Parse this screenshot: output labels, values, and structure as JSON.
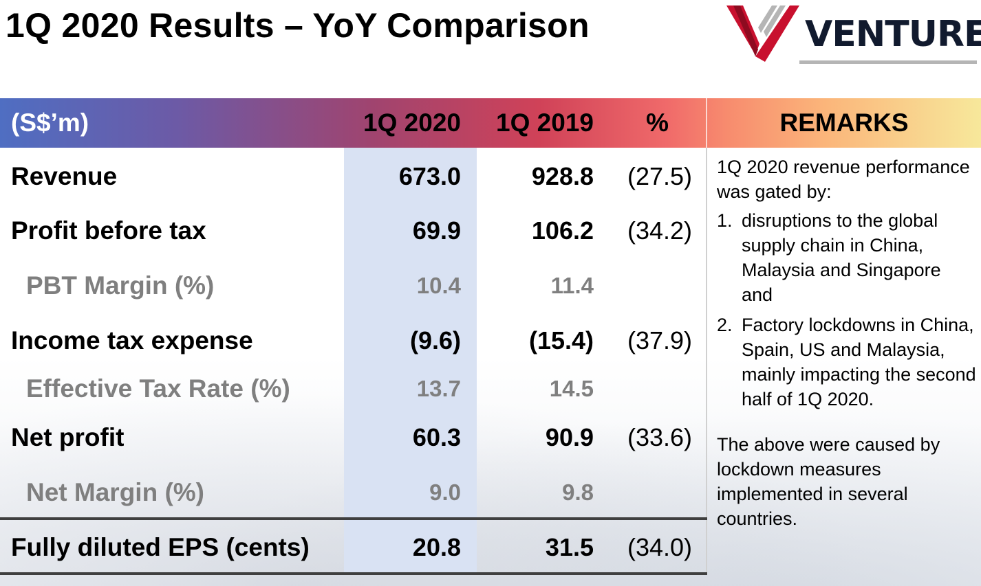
{
  "title": "1Q 2020 Results – YoY Comparison",
  "logo": {
    "text": "VENTURE",
    "colors": {
      "red": "#c8102e",
      "navy": "#111a2e",
      "gray": "#b5b5b5"
    }
  },
  "table": {
    "header": {
      "label": "(S$’m)",
      "col1": "1Q 2020",
      "col2": "1Q 2019",
      "col3": "%",
      "remarks": "REMARKS"
    },
    "rows": [
      {
        "label": "Revenue",
        "v1": "673.0",
        "v2": "928.8",
        "pct": "(27.5)"
      },
      {
        "label": "Profit before tax",
        "v1": "69.9",
        "v2": "106.2",
        "pct": "(34.2)"
      },
      {
        "label": "PBT Margin (%)",
        "v1": "10.4",
        "v2": "11.4",
        "pct": ""
      },
      {
        "label": "Income tax expense",
        "v1": "(9.6)",
        "v2": "(15.4)",
        "pct": "(37.9)"
      },
      {
        "label": "Effective Tax Rate (%)",
        "v1": "13.7",
        "v2": "14.5",
        "pct": ""
      },
      {
        "label": "Net profit",
        "v1": "60.3",
        "v2": "90.9",
        "pct": "(33.6)"
      },
      {
        "label": "Net Margin (%)",
        "v1": "9.0",
        "v2": "9.8",
        "pct": ""
      },
      {
        "label": "Fully diluted EPS (cents)",
        "v1": "20.8",
        "v2": "31.5",
        "pct": "(34.0)"
      }
    ]
  },
  "remarks": {
    "intro": "1Q 2020 revenue performance was gated by:",
    "items": [
      {
        "num": "1.",
        "text": "disruptions to the global supply chain in China, Malaysia and Singapore and"
      },
      {
        "num": "2.",
        "text": "Factory lockdowns in China, Spain, US and Malaysia, mainly impacting the second half of 1Q 2020."
      }
    ],
    "closing": "The above were caused by lockdown measures implemented in several countries."
  }
}
